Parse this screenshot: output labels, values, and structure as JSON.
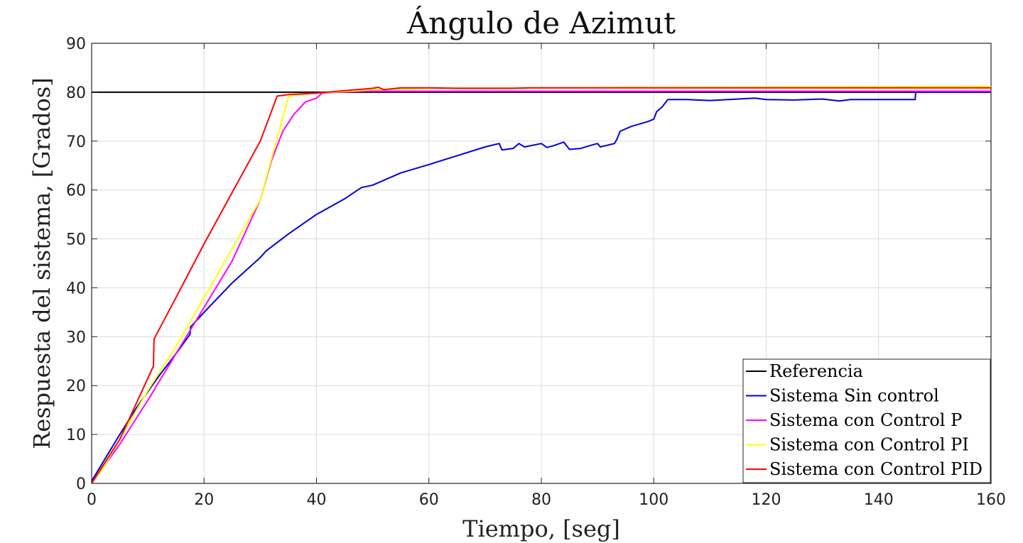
{
  "chart_data": {
    "type": "line",
    "title": "Ángulo de Azimut",
    "xlabel": "Tiempo, [seg]",
    "ylabel": "Respuesta del sistema, [Grados]",
    "xlim": [
      0,
      160
    ],
    "ylim": [
      0,
      90
    ],
    "x_ticks": [
      0,
      20,
      40,
      60,
      80,
      100,
      120,
      140,
      160
    ],
    "y_ticks": [
      0,
      10,
      20,
      30,
      40,
      50,
      60,
      70,
      80,
      90
    ],
    "grid": true,
    "legend_position": "bottom-right",
    "series": [
      {
        "name": "Referencia",
        "color": "#000000",
        "points": [
          [
            0,
            80
          ],
          [
            160,
            80
          ]
        ]
      },
      {
        "name": "Sistema Sin control",
        "color": "#0000dd",
        "points": [
          [
            0,
            0.5
          ],
          [
            5,
            10
          ],
          [
            8,
            15.5
          ],
          [
            12,
            22
          ],
          [
            15,
            26.5
          ],
          [
            17.5,
            30.5
          ],
          [
            17.6,
            32
          ],
          [
            20,
            35
          ],
          [
            25,
            41
          ],
          [
            30,
            46.2
          ],
          [
            31,
            47.5
          ],
          [
            35,
            51
          ],
          [
            40,
            55
          ],
          [
            45,
            58.2
          ],
          [
            48,
            60.5
          ],
          [
            50,
            61
          ],
          [
            55,
            63.5
          ],
          [
            60,
            65.2
          ],
          [
            65,
            67
          ],
          [
            70,
            68.8
          ],
          [
            72.5,
            69.5
          ],
          [
            73,
            68.2
          ],
          [
            75,
            68.5
          ],
          [
            76,
            69.5
          ],
          [
            77,
            68.8
          ],
          [
            80,
            69.5
          ],
          [
            81,
            68.7
          ],
          [
            82,
            69
          ],
          [
            84,
            69.8
          ],
          [
            85,
            68.3
          ],
          [
            87,
            68.5
          ],
          [
            89,
            69.2
          ],
          [
            90,
            69.5
          ],
          [
            90.5,
            68.8
          ],
          [
            93,
            69.5
          ],
          [
            93.5,
            70.5
          ],
          [
            94,
            72
          ],
          [
            96,
            73
          ],
          [
            99,
            74
          ],
          [
            100,
            74.5
          ],
          [
            100.5,
            76
          ],
          [
            101.5,
            77
          ],
          [
            102.5,
            78.5
          ],
          [
            106,
            78.5
          ],
          [
            110,
            78.3
          ],
          [
            115,
            78.6
          ],
          [
            118,
            78.8
          ],
          [
            120,
            78.5
          ],
          [
            125,
            78.4
          ],
          [
            130,
            78.6
          ],
          [
            133,
            78.2
          ],
          [
            135,
            78.5
          ],
          [
            140,
            78.5
          ],
          [
            146.5,
            78.5
          ],
          [
            146.6,
            80
          ],
          [
            160,
            80
          ]
        ]
      },
      {
        "name": "Sistema con Control P",
        "color": "#ff00ff",
        "points": [
          [
            0,
            0
          ],
          [
            5,
            8
          ],
          [
            10,
            17
          ],
          [
            15,
            26.5
          ],
          [
            20,
            36
          ],
          [
            25,
            45.5
          ],
          [
            30,
            58
          ],
          [
            32,
            66
          ],
          [
            34,
            72
          ],
          [
            36,
            75.5
          ],
          [
            38,
            78
          ],
          [
            40,
            78.8
          ],
          [
            41,
            79.8
          ],
          [
            45,
            80.1
          ],
          [
            50,
            80.2
          ],
          [
            60,
            80.2
          ],
          [
            80,
            80.2
          ],
          [
            100,
            80.2
          ],
          [
            160,
            80.2
          ]
        ]
      },
      {
        "name": "Sistema con Control PI",
        "color": "#ffff00",
        "points": [
          [
            0,
            0
          ],
          [
            2,
            3
          ],
          [
            5,
            9
          ],
          [
            10,
            19
          ],
          [
            15,
            28
          ],
          [
            20,
            38
          ],
          [
            25,
            48
          ],
          [
            30,
            58
          ],
          [
            35,
            79
          ],
          [
            36,
            79.4
          ],
          [
            40,
            79.8
          ],
          [
            50,
            80.5
          ],
          [
            60,
            80.8
          ],
          [
            80,
            80.9
          ],
          [
            100,
            81
          ],
          [
            160,
            81.2
          ]
        ]
      },
      {
        "name": "Sistema con Control PID",
        "color": "#ff0000",
        "points": [
          [
            0,
            0
          ],
          [
            5,
            9
          ],
          [
            11,
            24
          ],
          [
            11.1,
            29.5
          ],
          [
            15,
            38
          ],
          [
            20,
            49
          ],
          [
            25,
            59.5
          ],
          [
            30,
            70
          ],
          [
            33,
            79.2
          ],
          [
            35,
            79.5
          ],
          [
            40,
            79.8
          ],
          [
            45,
            80.3
          ],
          [
            50,
            80.8
          ],
          [
            51,
            81
          ],
          [
            52,
            80.5
          ],
          [
            55,
            80.9
          ],
          [
            60,
            80.9
          ],
          [
            65,
            80.8
          ],
          [
            70,
            80.8
          ],
          [
            75,
            80.8
          ],
          [
            78,
            80.9
          ],
          [
            100,
            80.9
          ],
          [
            160,
            80.9
          ]
        ]
      }
    ]
  }
}
